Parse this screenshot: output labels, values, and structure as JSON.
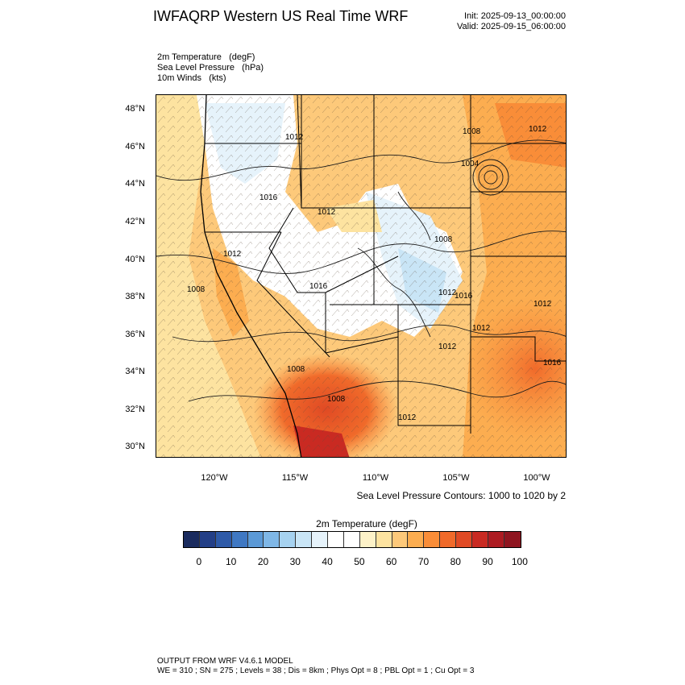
{
  "header": {
    "title": "IWFAQRP Western US Real Time WRF",
    "init": "Init: 2025-09-13_00:00:00",
    "valid": "Valid: 2025-09-15_06:00:00"
  },
  "fields": [
    {
      "name": "2m Temperature",
      "unit": "(degF)"
    },
    {
      "name": "Sea Level Pressure",
      "unit": "(hPa)"
    },
    {
      "name": "10m Winds",
      "unit": "(kts)"
    }
  ],
  "map": {
    "lat_labels": [
      "48°N",
      "46°N",
      "44°N",
      "42°N",
      "40°N",
      "38°N",
      "36°N",
      "34°N",
      "32°N",
      "30°N"
    ],
    "lon_labels": [
      "120°W",
      "115°W",
      "110°W",
      "105°W",
      "100°W"
    ],
    "isobar_labels": [
      "1012",
      "1008",
      "1004",
      "1016",
      "1008",
      "1012",
      "1008",
      "1016",
      "1012",
      "1012",
      "1012",
      "1016",
      "1012",
      "1008",
      "1008",
      "1012",
      "1016",
      "1012",
      "1012"
    ],
    "contour_note": "Sea Level Pressure Contours: 1000 to 1020 by 2"
  },
  "colorbar": {
    "title": "2m Temperature  (degF)",
    "labels": [
      "0",
      "10",
      "20",
      "30",
      "40",
      "50",
      "60",
      "70",
      "80",
      "90",
      "100"
    ],
    "colors": [
      "#1a2b5e",
      "#233f87",
      "#2e5aa8",
      "#3f78c3",
      "#5b99d6",
      "#7fb7e6",
      "#a6d2f0",
      "#c9e5f6",
      "#e6f3fb",
      "#ffffff",
      "#ffffff",
      "#fdf2c8",
      "#fde3a0",
      "#fdc97a",
      "#fcad50",
      "#f98d38",
      "#f06a2a",
      "#e04a24",
      "#c92a22",
      "#ad1b22",
      "#8f1520"
    ]
  },
  "footer": {
    "line1": "OUTPUT FROM WRF V4.6.1 MODEL",
    "line2": "WE = 310 ; SN = 275 ; Levels = 38 ; Dis = 8km ; Phys Opt = 8 ; PBL Opt = 1 ; Cu Opt = 3"
  }
}
